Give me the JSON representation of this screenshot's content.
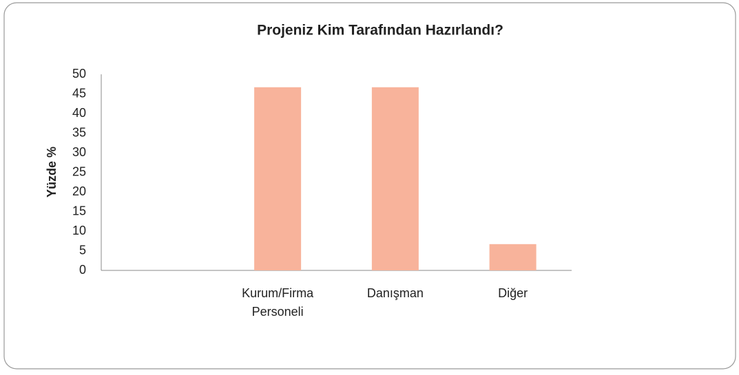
{
  "chart_data": {
    "type": "bar",
    "title": "Projeniz Kim Tarafından Hazırlandı?",
    "y_label": "Yüzde %",
    "categories": [
      null,
      "Kurum/Firma Personeli",
      "Danışman",
      "Diğer"
    ],
    "values": [
      null,
      46.7,
      46.7,
      6.7
    ],
    "color": "#f8b39b",
    "ylim": [
      0,
      50
    ],
    "yticks": [
      0,
      5,
      10,
      15,
      20,
      25,
      30,
      35,
      40,
      45,
      50
    ],
    "grid": false
  }
}
